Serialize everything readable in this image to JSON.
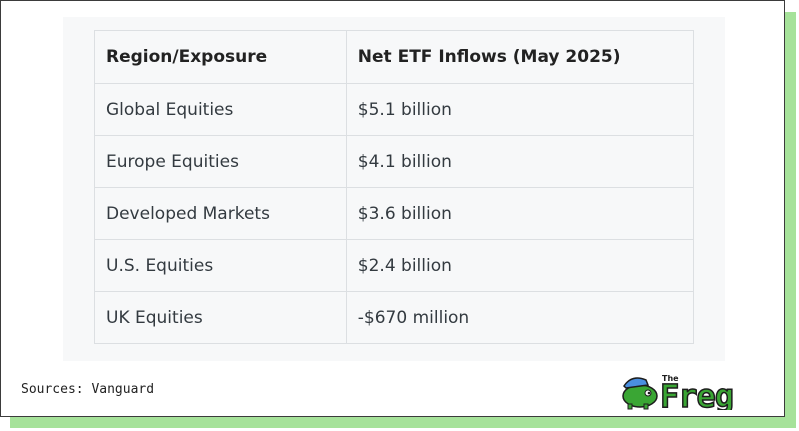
{
  "table": {
    "headers": [
      "Region/Exposure",
      "Net ETF Inflows (May 2025)"
    ],
    "rows": [
      [
        "Global Equities",
        "$5.1 billion"
      ],
      [
        "Europe Equities",
        "$4.1 billion"
      ],
      [
        "Developed Markets",
        "$3.6 billion"
      ],
      [
        "U.S. Equities",
        "$2.4 billion"
      ],
      [
        "UK Equities",
        "-$670 million"
      ]
    ]
  },
  "footer": {
    "sources": "Sources: Vanguard",
    "logo_small_text": "The",
    "logo_text": "Freg"
  },
  "colors": {
    "frame_shadow": "#a6e29a",
    "logo_green": "#3aa634",
    "logo_blue": "#4a8fe0"
  }
}
